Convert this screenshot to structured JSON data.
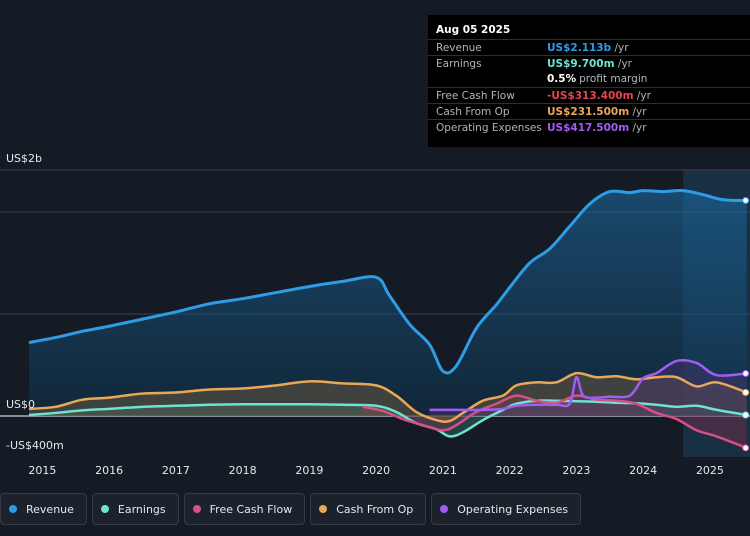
{
  "tooltip": {
    "date": "Aug 05 2025",
    "rows": [
      {
        "label": "Revenue",
        "value": "US$2.113b",
        "unit": " /yr",
        "color": "#2f9ce8"
      },
      {
        "label": "Earnings",
        "value": "US$9.700m",
        "unit": " /yr",
        "color": "#6fe3d2"
      },
      {
        "label": "",
        "value": "0.5%",
        "unit": "profit margin",
        "color": "#ffffff"
      },
      {
        "label": "Free Cash Flow",
        "value": "-US$313.400m",
        "unit": " /yr",
        "color": "#e8424f"
      },
      {
        "label": "Cash From Op",
        "value": "US$231.500m",
        "unit": " /yr",
        "color": "#e9a75a"
      },
      {
        "label": "Operating Expenses",
        "value": "US$417.500m",
        "unit": " /yr",
        "color": "#a35cf0"
      }
    ]
  },
  "legend": [
    {
      "label": "Revenue",
      "color": "#2f9ce8"
    },
    {
      "label": "Earnings",
      "color": "#6fe3d2"
    },
    {
      "label": "Free Cash Flow",
      "color": "#d64f86"
    },
    {
      "label": "Cash From Op",
      "color": "#e9a75a"
    },
    {
      "label": "Operating Expenses",
      "color": "#a35cf0"
    }
  ],
  "chart_data": {
    "type": "area",
    "y_labels": [
      "US$2b",
      "US$0",
      "-US$400m"
    ],
    "x_tick_labels": [
      "2015",
      "2016",
      "2017",
      "2018",
      "2019",
      "2020",
      "2021",
      "2022",
      "2023",
      "2024",
      "2025"
    ],
    "ylim": [
      -400,
      2400
    ],
    "xlim": [
      2014.6,
      2025.6
    ],
    "grid": true,
    "legend_position": "bottom",
    "forecast_start": 2024.6,
    "series": [
      {
        "name": "Revenue",
        "color": "#2f9ce8",
        "x": [
          2014.8,
          2015.2,
          2015.6,
          2016.0,
          2016.5,
          2017.0,
          2017.5,
          2018.0,
          2018.5,
          2019.0,
          2019.5,
          2020.0,
          2020.2,
          2020.5,
          2020.8,
          2021.0,
          2021.2,
          2021.5,
          2021.8,
          2022.0,
          2022.3,
          2022.6,
          2022.9,
          2023.2,
          2023.5,
          2023.8,
          2024.0,
          2024.3,
          2024.6,
          2024.9,
          2025.2,
          2025.55
        ],
        "y": [
          720,
          770,
          830,
          880,
          950,
          1020,
          1100,
          1150,
          1210,
          1270,
          1320,
          1360,
          1180,
          900,
          700,
          440,
          490,
          860,
          1090,
          1260,
          1500,
          1640,
          1860,
          2080,
          2200,
          2190,
          2210,
          2200,
          2210,
          2170,
          2120,
          2113
        ]
      },
      {
        "name": "Earnings",
        "color": "#6fe3d2",
        "x": [
          2014.8,
          2015.2,
          2015.6,
          2016.0,
          2016.5,
          2017.0,
          2017.5,
          2018.0,
          2018.5,
          2019.0,
          2019.5,
          2020.0,
          2020.3,
          2020.6,
          2020.9,
          2021.1,
          2021.3,
          2021.6,
          2021.9,
          2022.1,
          2022.4,
          2022.7,
          2023.0,
          2023.3,
          2023.6,
          2023.9,
          2024.2,
          2024.5,
          2024.8,
          2025.1,
          2025.55
        ],
        "y": [
          10,
          30,
          55,
          70,
          90,
          100,
          110,
          115,
          115,
          115,
          110,
          100,
          40,
          -70,
          -130,
          -200,
          -160,
          -40,
          60,
          120,
          150,
          150,
          145,
          140,
          130,
          125,
          110,
          90,
          100,
          60,
          10
        ]
      },
      {
        "name": "Free Cash Flow",
        "color": "#d64f86",
        "x": [
          2019.8,
          2020.1,
          2020.4,
          2020.7,
          2021.0,
          2021.2,
          2021.5,
          2021.8,
          2022.1,
          2022.4,
          2022.7,
          2023.0,
          2023.3,
          2023.6,
          2023.9,
          2024.2,
          2024.5,
          2024.8,
          2025.1,
          2025.55
        ],
        "y": [
          90,
          50,
          -30,
          -90,
          -140,
          -90,
          40,
          120,
          200,
          150,
          130,
          200,
          160,
          150,
          120,
          30,
          -30,
          -140,
          -200,
          -313
        ]
      },
      {
        "name": "Cash From Op",
        "color": "#e9a75a",
        "x": [
          2014.8,
          2015.2,
          2015.6,
          2016.0,
          2016.5,
          2017.0,
          2017.5,
          2018.0,
          2018.5,
          2019.0,
          2019.5,
          2020.0,
          2020.3,
          2020.6,
          2020.9,
          2021.1,
          2021.3,
          2021.6,
          2021.9,
          2022.1,
          2022.4,
          2022.7,
          2023.0,
          2023.3,
          2023.6,
          2023.9,
          2024.2,
          2024.5,
          2024.8,
          2025.1,
          2025.55
        ],
        "y": [
          70,
          90,
          160,
          180,
          220,
          230,
          260,
          270,
          300,
          340,
          320,
          300,
          200,
          40,
          -40,
          -50,
          30,
          150,
          200,
          300,
          330,
          330,
          420,
          380,
          390,
          360,
          380,
          380,
          290,
          330,
          231
        ]
      },
      {
        "name": "Operating Expenses",
        "color": "#a35cf0",
        "x": [
          2020.8,
          2021.0,
          2021.3,
          2021.6,
          2021.9,
          2022.1,
          2022.4,
          2022.7,
          2022.9,
          2023.0,
          2023.1,
          2023.3,
          2023.5,
          2023.8,
          2024.0,
          2024.2,
          2024.5,
          2024.8,
          2025.1,
          2025.55
        ],
        "y": [
          60,
          60,
          60,
          60,
          70,
          100,
          110,
          110,
          120,
          380,
          200,
          180,
          190,
          200,
          370,
          420,
          540,
          520,
          400,
          417
        ]
      }
    ]
  }
}
